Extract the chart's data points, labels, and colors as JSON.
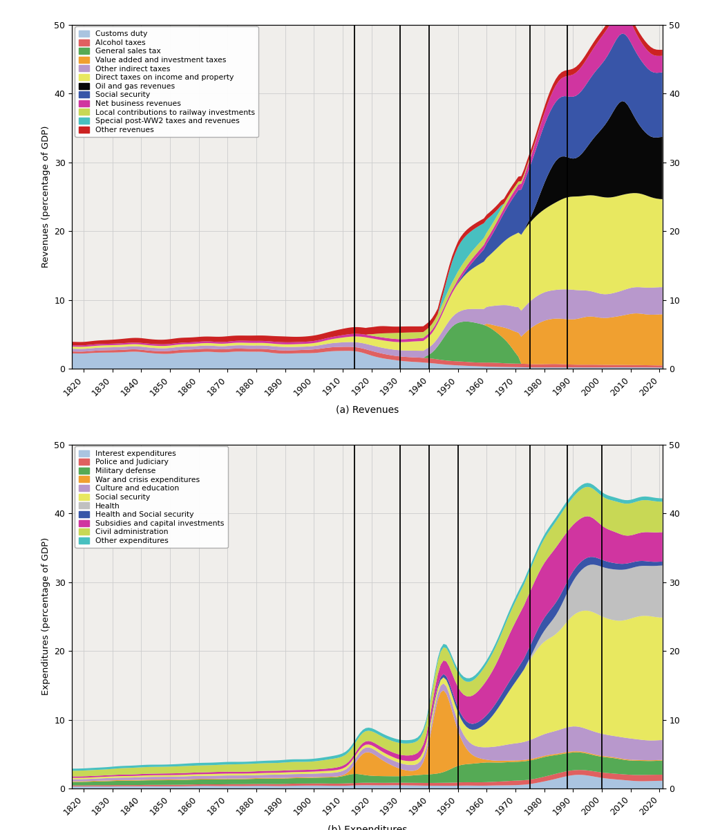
{
  "title_top": "(a) Revenues",
  "title_bottom": "(b) Expenditures",
  "ylabel_top": "Revenues (percentage of GDP)",
  "ylabel_bottom": "Expenditures (percentage of GDP)",
  "background_color": "#f0eeeb",
  "vlines_top": [
    1914,
    1930,
    1940,
    1975,
    1988
  ],
  "vlines_bottom": [
    1914,
    1930,
    1940,
    1950,
    1975,
    1988,
    2000
  ],
  "rev_legend": [
    {
      "label": "Customs duty",
      "color": "#aac4e0"
    },
    {
      "label": "Alcohol taxes",
      "color": "#e06060"
    },
    {
      "label": "General sales tax",
      "color": "#55aa55"
    },
    {
      "label": "Value added and investment taxes",
      "color": "#f0a030"
    },
    {
      "label": "Other indirect taxes",
      "color": "#b898cc"
    },
    {
      "label": "Direct taxes on income and property",
      "color": "#e8e860"
    },
    {
      "label": "Oil and gas revenues",
      "color": "#080808"
    },
    {
      "label": "Social security",
      "color": "#3855a8"
    },
    {
      "label": "Net business revenues",
      "color": "#d035a0"
    },
    {
      "label": "Local contributions to railway investments",
      "color": "#c8d855"
    },
    {
      "label": "Special post-WW2 taxes and revenues",
      "color": "#48c0c0"
    },
    {
      "label": "Other revenues",
      "color": "#cc2222"
    }
  ],
  "exp_legend": [
    {
      "label": "Interest expenditures",
      "color": "#aac4e0"
    },
    {
      "label": "Police and Judiciary",
      "color": "#e06060"
    },
    {
      "label": "Military defense",
      "color": "#55aa55"
    },
    {
      "label": "War and crisis expenditures",
      "color": "#f0a030"
    },
    {
      "label": "Culture and education",
      "color": "#b898cc"
    },
    {
      "label": "Social security",
      "color": "#e8e860"
    },
    {
      "label": "Health",
      "color": "#c0c0c0"
    },
    {
      "label": "Health and Social security",
      "color": "#3855a8"
    },
    {
      "label": "Subsidies and capital investments",
      "color": "#d035a0"
    },
    {
      "label": "Civil administration",
      "color": "#c8d855"
    },
    {
      "label": "Other expenditures",
      "color": "#48c0c0"
    }
  ]
}
